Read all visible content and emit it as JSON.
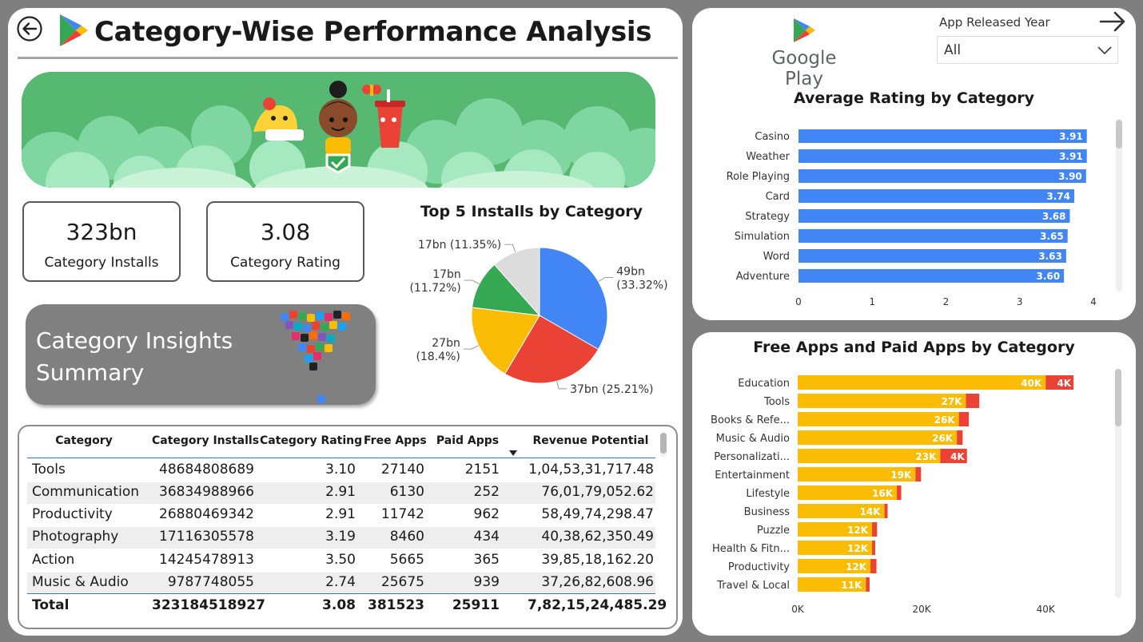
{
  "header": {
    "title": "Category-Wise Performance Analysis"
  },
  "kpis": [
    {
      "value": "323bn",
      "label": "Category Installs"
    },
    {
      "value": "3.08",
      "label": "Category Rating"
    }
  ],
  "insights_button": {
    "label": "Category Insights Summary"
  },
  "brand": {
    "name": "Google Play"
  },
  "slicer": {
    "label": "App Released Year",
    "value": "All"
  },
  "table": {
    "columns": [
      "Category",
      "Category Installs",
      "Category Rating",
      "Free Apps",
      "Paid Apps",
      "Revenue Potential"
    ],
    "rows": [
      [
        "Tools",
        "48684808689",
        "3.10",
        "27140",
        "2151",
        "1,04,53,31,717.48"
      ],
      [
        "Communication",
        "36834988966",
        "2.91",
        "6130",
        "252",
        "76,01,79,052.62"
      ],
      [
        "Productivity",
        "26880469342",
        "2.91",
        "11742",
        "962",
        "58,49,74,298.47"
      ],
      [
        "Photography",
        "17116305578",
        "3.19",
        "8460",
        "434",
        "40,38,62,350.49"
      ],
      [
        "Action",
        "14245478913",
        "3.50",
        "5665",
        "365",
        "39,85,18,162.20"
      ],
      [
        "Music & Audio",
        "9787748055",
        "2.74",
        "25675",
        "939",
        "37,26,82,608.96"
      ]
    ],
    "total": [
      "Total",
      "323184518927",
      "3.08",
      "381523",
      "25911",
      "7,82,15,24,485.29"
    ]
  },
  "colors": {
    "blue": "#4285f4",
    "red": "#ea4335",
    "yellow": "#fbbc05",
    "green": "#34a853",
    "grey": "#dcdcdc",
    "free": "#fbbc05",
    "paid": "#ea4335",
    "accent": "#2e7bcf"
  },
  "chart_data": [
    {
      "type": "pie",
      "title": "Top 5 Installs by Category",
      "slices": [
        {
          "value": 49,
          "label": "49bn",
          "percent": "(33.32%)",
          "color": "#4285f4"
        },
        {
          "value": 37,
          "label": "37bn (25.21%)",
          "percent": "",
          "color": "#ea4335"
        },
        {
          "value": 27,
          "label": "27bn",
          "percent": "(18.4%)",
          "color": "#fbbc05"
        },
        {
          "value": 17,
          "label": "17bn",
          "percent": "(11.72%)",
          "color": "#34a853"
        },
        {
          "value": 17,
          "label": "17bn (11.35%)",
          "percent": "",
          "color": "#dcdcdc"
        }
      ]
    },
    {
      "type": "bar",
      "title": "Average Rating by Category",
      "categories": [
        "Casino",
        "Weather",
        "Role Playing",
        "Card",
        "Strategy",
        "Simulation",
        "Word",
        "Adventure"
      ],
      "values": [
        3.91,
        3.91,
        3.9,
        3.74,
        3.68,
        3.65,
        3.63,
        3.6
      ],
      "value_labels": [
        "3.91",
        "3.91",
        "3.90",
        "3.74",
        "3.68",
        "3.65",
        "3.63",
        "3.60"
      ],
      "xlim": [
        0,
        4
      ],
      "xticks": [
        "0",
        "1",
        "2",
        "3",
        "4"
      ],
      "color": "#4285f4"
    },
    {
      "type": "bar",
      "title": "Free Apps and Paid Apps by Category",
      "categories": [
        "Education",
        "Tools",
        "Books & Refe...",
        "Music & Audio",
        "Personalizati...",
        "Entertainment",
        "Lifestyle",
        "Business",
        "Puzzle",
        "Health & Fitn...",
        "Productivity",
        "Travel & Local"
      ],
      "series": [
        {
          "values": [
            40000,
            27140,
            26000,
            25675,
            23000,
            19000,
            16000,
            14000,
            12000,
            12000,
            11742,
            11000
          ],
          "labels": [
            "40K",
            "27K",
            "26K",
            "26K",
            "23K",
            "19K",
            "16K",
            "14K",
            "12K",
            "12K",
            "12K",
            "11K"
          ]
        },
        {
          "values": [
            4500,
            2151,
            1600,
            939,
            4300,
            900,
            700,
            500,
            800,
            500,
            962,
            600
          ],
          "labels": [
            "4K",
            "",
            "",
            "",
            "4K",
            "",
            "",
            "",
            "",
            "",
            "",
            ""
          ]
        }
      ],
      "xlim": [
        0,
        45000
      ],
      "xticks": [
        "0K",
        "20K",
        "40K"
      ]
    }
  ]
}
